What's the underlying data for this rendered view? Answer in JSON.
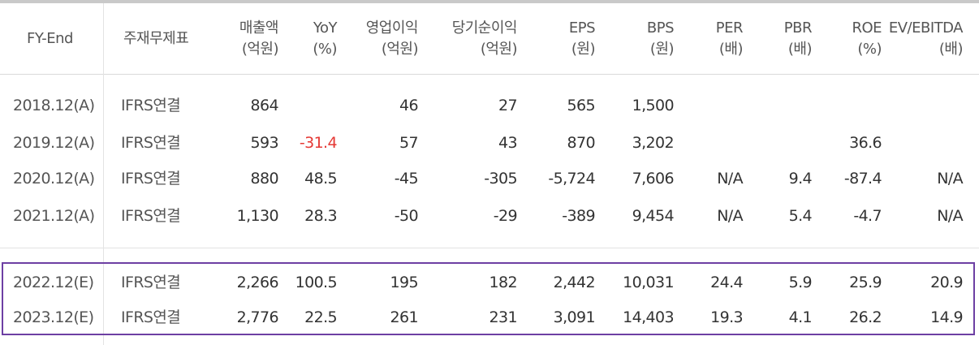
{
  "headers": [
    {
      "l1": "FY-End",
      "l2": ""
    },
    {
      "l1": "주재무제표",
      "l2": ""
    },
    {
      "l1": "매출액",
      "l2": "(억원)"
    },
    {
      "l1": "YoY",
      "l2": "(%)"
    },
    {
      "l1": "영업이익",
      "l2": "(억원)"
    },
    {
      "l1": "당기순이익",
      "l2": "(억원)"
    },
    {
      "l1": "EPS",
      "l2": "(원)"
    },
    {
      "l1": "BPS",
      "l2": "(원)"
    },
    {
      "l1": "PER",
      "l2": "(배)"
    },
    {
      "l1": "PBR",
      "l2": "(배)"
    },
    {
      "l1": "ROE",
      "l2": "(%)"
    },
    {
      "l1": "EV/EBITDA",
      "l2": "(배)"
    }
  ],
  "rows": [
    {
      "fy": "2018.12(A)",
      "basis": "IFRS연결",
      "sales": "864",
      "yoy": "",
      "op": "46",
      "net": "27",
      "eps": "565",
      "bps": "1,500",
      "per": "",
      "pbr": "",
      "roe": "",
      "ev": ""
    },
    {
      "fy": "2019.12(A)",
      "basis": "IFRS연결",
      "sales": "593",
      "yoy": "-31.4",
      "op": "57",
      "net": "43",
      "eps": "870",
      "bps": "3,202",
      "per": "",
      "pbr": "",
      "roe": "36.6",
      "ev": ""
    },
    {
      "fy": "2020.12(A)",
      "basis": "IFRS연결",
      "sales": "880",
      "yoy": "48.5",
      "op": "-45",
      "net": "-305",
      "eps": "-5,724",
      "bps": "7,606",
      "per": "N/A",
      "pbr": "9.4",
      "roe": "-87.4",
      "ev": "N/A"
    },
    {
      "fy": "2021.12(A)",
      "basis": "IFRS연결",
      "sales": "1,130",
      "yoy": "28.3",
      "op": "-50",
      "net": "-29",
      "eps": "-389",
      "bps": "9,454",
      "per": "N/A",
      "pbr": "5.4",
      "roe": "-4.7",
      "ev": "N/A"
    },
    {
      "fy": "2022.12(E)",
      "basis": "IFRS연결",
      "sales": "2,266",
      "yoy": "100.5",
      "op": "195",
      "net": "182",
      "eps": "2,442",
      "bps": "10,031",
      "per": "24.4",
      "pbr": "5.9",
      "roe": "25.9",
      "ev": "20.9"
    },
    {
      "fy": "2023.12(E)",
      "basis": "IFRS연결",
      "sales": "2,776",
      "yoy": "22.5",
      "op": "261",
      "net": "231",
      "eps": "3,091",
      "bps": "14,403",
      "per": "19.3",
      "pbr": "4.1",
      "roe": "26.2",
      "ev": "14.9"
    }
  ],
  "colors": {
    "negative_highlight": "#e53935",
    "estimate_border": "#6d3fa3"
  }
}
